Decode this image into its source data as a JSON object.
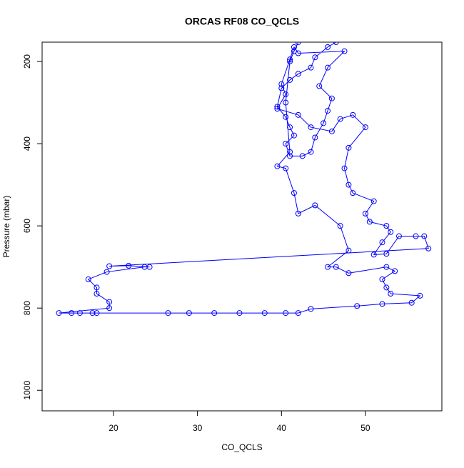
{
  "chart_data": {
    "type": "line",
    "title": "ORCAS RF08 CO_QCLS",
    "x_label": "CO_QCLS",
    "y_label": "Pressure (mbar)",
    "color": "#0000ff",
    "xlim": [
      11.5,
      59.1
    ],
    "ylim": [
      1050,
      153
    ],
    "xticks": [
      20,
      30,
      40,
      50
    ],
    "yticks": [
      200,
      400,
      600,
      800,
      1000
    ],
    "x": [
      46.5,
      45.5,
      44,
      43.5,
      42,
      41,
      40,
      39.5,
      40.5,
      41,
      41.5,
      40.5,
      41,
      42.5,
      43.5,
      44,
      45,
      45.5,
      46,
      44.5,
      45.5,
      47.5,
      42,
      41.5,
      41,
      40,
      40.5,
      39.5,
      42,
      43.5,
      46,
      47,
      48.5,
      50,
      48,
      47.5,
      48,
      48.5,
      51,
      50,
      50.5,
      52.5,
      53,
      52,
      51,
      52.5,
      54,
      56,
      57,
      57.5,
      19.5,
      21.8,
      24.3,
      23.7,
      19.2,
      17,
      18,
      18,
      19.5,
      19.5,
      13.5,
      15,
      16,
      17.5,
      18,
      26.5,
      29,
      32,
      35,
      38,
      40.5,
      42,
      43.5,
      49,
      52,
      55.5,
      56.5,
      53,
      52.5,
      52,
      53.5,
      52.5,
      48,
      46.5,
      45.5,
      48,
      47,
      44,
      42,
      41.5,
      40.5,
      39.5,
      41,
      40.5,
      41,
      41.5,
      42
    ],
    "values": [
      153,
      165,
      190,
      215,
      230,
      245,
      265,
      310,
      335,
      360,
      380,
      400,
      430,
      430,
      420,
      385,
      350,
      320,
      290,
      260,
      215,
      175,
      180,
      165,
      195,
      255,
      280,
      315,
      330,
      360,
      370,
      340,
      330,
      360,
      410,
      460,
      500,
      520,
      540,
      570,
      590,
      600,
      615,
      640,
      670,
      668,
      625,
      625,
      625,
      655,
      698,
      697,
      700,
      700,
      712,
      730,
      750,
      765,
      785,
      800,
      812,
      812,
      812,
      812,
      812,
      812,
      812,
      812,
      812,
      812,
      812,
      812,
      802,
      795,
      790,
      787,
      770,
      765,
      750,
      730,
      710,
      700,
      715,
      700,
      700,
      660,
      600,
      550,
      570,
      520,
      460,
      455,
      420,
      300,
      200,
      175,
      153
    ]
  }
}
